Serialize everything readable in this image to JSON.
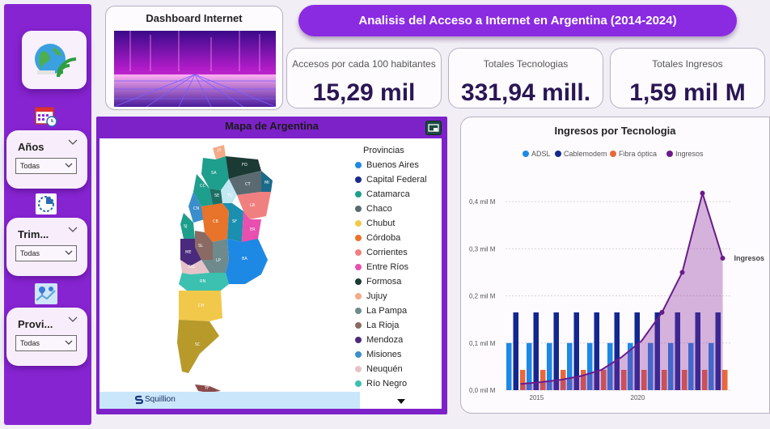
{
  "title": "Analisis del Acceso a Internet en Argentina (2014-2024)",
  "dashboard_card": {
    "title": "Dashboard Internet"
  },
  "kpis": [
    {
      "label": "Accesos por cada 100 habitantes",
      "value": "15,29 mil"
    },
    {
      "label": "Totales Tecnologias",
      "value": "331,94 mill."
    },
    {
      "label": "Totales Ingresos",
      "value": "1,59 mil M"
    }
  ],
  "filters": [
    {
      "title": "Años",
      "value": "Todas"
    },
    {
      "title": "Trim...",
      "value": "Todas"
    },
    {
      "title": "Provi...",
      "value": "Todas"
    }
  ],
  "map": {
    "title": "Mapa de Argentina",
    "legend_title": "Provincias",
    "watermark": "Squillion",
    "provinces": [
      {
        "name": "Buenos Aires",
        "color": "#1e88e5"
      },
      {
        "name": "Capital Federal",
        "color": "#1a2a8c"
      },
      {
        "name": "Catamarca",
        "color": "#1e9e8c"
      },
      {
        "name": "Chaco",
        "color": "#5a6a70"
      },
      {
        "name": "Chubut",
        "color": "#f2c84b"
      },
      {
        "name": "Córdoba",
        "color": "#e8732a"
      },
      {
        "name": "Corrientes",
        "color": "#f08080"
      },
      {
        "name": "Entre Ríos",
        "color": "#e84fae"
      },
      {
        "name": "Formosa",
        "color": "#1b3a34"
      },
      {
        "name": "Jujuy",
        "color": "#f4a987"
      },
      {
        "name": "La Pampa",
        "color": "#6f8a8c"
      },
      {
        "name": "La Rioja",
        "color": "#8a6a62"
      },
      {
        "name": "Mendoza",
        "color": "#4a2a7c"
      },
      {
        "name": "Misiones",
        "color": "#3a8ecb"
      },
      {
        "name": "Neuquén",
        "color": "#e6c3c8"
      },
      {
        "name": "Río Negro",
        "color": "#3cc0b0"
      }
    ],
    "map_labels": [
      "JY",
      "SA",
      "FO",
      "CT",
      "TU",
      "SE",
      "CC",
      "MI",
      "LR",
      "CN",
      "SJ",
      "CB",
      "SF",
      "ER",
      "SL",
      "ME",
      "BA",
      "LP",
      "NQ",
      "RN",
      "CH",
      "SC",
      "TF"
    ]
  },
  "chart_data": {
    "type": "bar",
    "title": "Ingresos por Tecnologia",
    "legend": [
      "ADSL",
      "Cablemodem",
      "Fibra óptica",
      "Ingresos"
    ],
    "colors": {
      "ADSL": "#1e88e5",
      "Cablemodem": "#13278f",
      "Fibra óptica": "#e8683a",
      "Ingresos": "#6a1b8a"
    },
    "y_ticks": [
      "0,0 mil M",
      "0,1 mil M",
      "0,2 mil M",
      "0,3 mil M",
      "0,4 mil M"
    ],
    "ylim": [
      0,
      0.45
    ],
    "x_ticks": [
      "2015",
      "2020"
    ],
    "x": [
      2014,
      2015,
      2016,
      2017,
      2018,
      2019,
      2020,
      2021,
      2022,
      2023,
      2024
    ],
    "series": [
      {
        "name": "ADSL",
        "values": [
          0.1,
          0.1,
          0.1,
          0.1,
          0.1,
          0.1,
          0.1,
          0.1,
          0.1,
          0.1,
          0.1
        ]
      },
      {
        "name": "Cablemodem",
        "values": [
          0.165,
          0.165,
          0.165,
          0.165,
          0.165,
          0.165,
          0.165,
          0.165,
          0.165,
          0.165,
          0.165
        ]
      },
      {
        "name": "Fibra óptica",
        "values": [
          0.043,
          0.043,
          0.043,
          0.043,
          0.043,
          0.043,
          0.043,
          0.043,
          0.043,
          0.043,
          0.043
        ]
      },
      {
        "name": "Ingresos",
        "values": [
          0.013,
          0.017,
          0.022,
          0.03,
          0.043,
          0.07,
          0.105,
          0.165,
          0.25,
          0.418,
          0.28
        ]
      }
    ],
    "line_label": "Ingresos"
  }
}
